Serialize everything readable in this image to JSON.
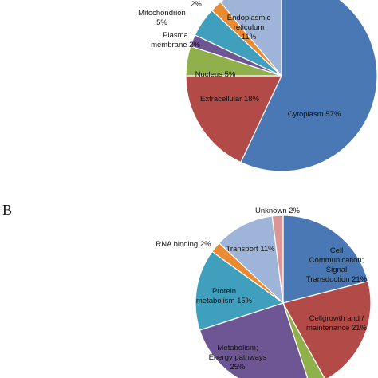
{
  "chart_data": [
    {
      "type": "pie",
      "panel_letter": "",
      "colors": {
        "Cytoplasm": "#4a78b4",
        "Extracellular": "#b24a47",
        "Nucleus": "#8fb04a",
        "Plasma membrane": "#6e5594",
        "Mitochondrion": "#3f9fbd",
        "Unlabeled 2%": "#e88b33",
        "Endoplasmic reticulum": "#9eb4d9"
      },
      "slices": [
        {
          "name": "Cytoplasm",
          "value": 57,
          "label_lines": [
            "Cytoplasm 57%"
          ]
        },
        {
          "name": "Extracellular",
          "value": 18,
          "label_lines": [
            "Extracellular 18%"
          ]
        },
        {
          "name": "Nucleus",
          "value": 5,
          "label_lines": [
            "Nucleus 5%"
          ]
        },
        {
          "name": "Plasma membrane",
          "value": 2,
          "label_lines": [
            "Plasma",
            "membrane 2%"
          ]
        },
        {
          "name": "Mitochondrion",
          "value": 5,
          "label_lines": [
            "Mitochondrion",
            "5%"
          ]
        },
        {
          "name": "Unlabeled 2%",
          "value": 2,
          "label_lines": [
            "2%"
          ]
        },
        {
          "name": "Endoplasmic reticulum",
          "value": 11,
          "label_lines": [
            "Endoplasmic",
            "reticulum",
            "11%"
          ]
        }
      ]
    },
    {
      "type": "pie",
      "panel_letter": "B",
      "colors": {
        "Cell Communication; Signal Transduction": "#4a78b4",
        "Cellgrowth and / maintenance": "#b24a47",
        "Green slice": "#8fb04a",
        "Metabolism; Energy pathways": "#6e5594",
        "Protein metabolism": "#3f9fbd",
        "RNA binding": "#e88b33",
        "Transport": "#9eb4d9",
        "Unknown": "#d99694"
      },
      "slices": [
        {
          "name": "Cell Communication; Signal Transduction",
          "value": 21,
          "label_lines": [
            "Cell",
            "Communication;",
            "Signal",
            "Transduction 21%"
          ]
        },
        {
          "name": "Cellgrowth and / maintenance",
          "value": 21,
          "label_lines": [
            "Cellgrowth and /",
            "maintenance 21%"
          ]
        },
        {
          "name": "Green slice",
          "value": 3,
          "label_lines": []
        },
        {
          "name": "Metabolism; Energy pathways",
          "value": 25,
          "label_lines": [
            "Metabolism;",
            "Energy pathways",
            "25%"
          ]
        },
        {
          "name": "Protein metabolism",
          "value": 15,
          "label_lines": [
            "Protein",
            "metabolism 15%"
          ]
        },
        {
          "name": "RNA binding",
          "value": 2,
          "label_lines": [
            "RNA binding 2%"
          ]
        },
        {
          "name": "Transport",
          "value": 11,
          "label_lines": [
            "Transport 11%"
          ]
        },
        {
          "name": "Unknown",
          "value": 2,
          "label_lines": [
            "Unknown 2%"
          ]
        }
      ]
    }
  ]
}
